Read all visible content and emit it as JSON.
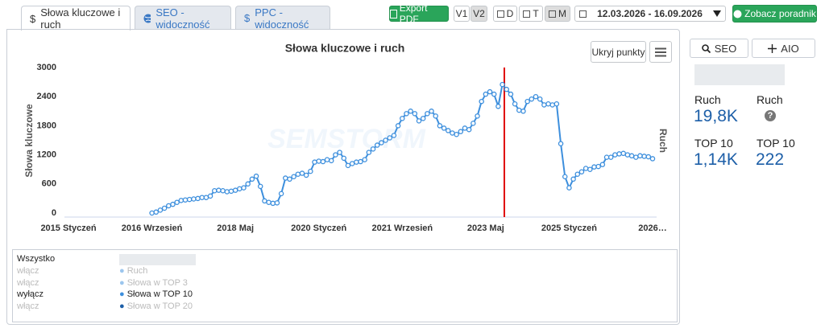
{
  "tabs": [
    {
      "icon": "$",
      "label": "Słowa kluczowe i ruch"
    },
    {
      "label": "SEO - widoczność"
    },
    {
      "icon": "$",
      "label": "PPC - widoczność"
    }
  ],
  "toolbar": {
    "export": "Export PDF",
    "versions": [
      "V1",
      "V2"
    ],
    "periods": [
      "D",
      "T",
      "M"
    ],
    "date_range": "12.03.2026 - 16.09.2026",
    "guide": "Zobacz poradnik"
  },
  "chart_controls": {
    "hide_points": "Ukryj punkty"
  },
  "side_panel": {
    "buttons": [
      "SEO",
      "AIO"
    ],
    "metrics": [
      {
        "label": "Ruch",
        "value": "19,8K"
      },
      {
        "label": "Ruch",
        "value": "?"
      },
      {
        "label": "TOP 10",
        "value": "1,14K"
      },
      {
        "label": "TOP 10",
        "value": "222"
      }
    ]
  },
  "legend_panel": {
    "all": "Wszystko",
    "toggles": [
      "włącz",
      "włącz",
      "wyłącz",
      "włącz"
    ],
    "items": [
      "Ruch",
      "Słowa w TOP 3",
      "Słowa w TOP 10",
      "Słowa w TOP 20"
    ]
  },
  "chart_data": {
    "type": "line",
    "title": "Słowa kluczowe i ruch",
    "y_label": "Słowa kluczowe",
    "y2_label": "Ruch",
    "watermark": "SEMSTORM",
    "color": "#3d8fdd",
    "ylim": [
      0,
      3000
    ],
    "yticks": [
      0,
      600,
      1200,
      1800,
      2400,
      3000
    ],
    "grid": false,
    "categories": [
      "2015 Styczeń",
      null,
      null,
      null,
      null,
      null,
      null,
      null,
      null,
      null,
      null,
      null,
      null,
      null,
      null,
      null,
      null,
      null,
      null,
      null,
      "2016 Wrzesień",
      null,
      null,
      null,
      null,
      null,
      null,
      null,
      null,
      null,
      null,
      null,
      null,
      null,
      null,
      null,
      null,
      null,
      null,
      null,
      "2018 Maj",
      null,
      null,
      null,
      null,
      null,
      null,
      null,
      null,
      null,
      null,
      null,
      null,
      null,
      null,
      null,
      null,
      null,
      null,
      null,
      "2020 Styczeń",
      null,
      null,
      null,
      null,
      null,
      null,
      null,
      null,
      null,
      null,
      null,
      null,
      null,
      null,
      null,
      null,
      null,
      null,
      null,
      "2021 Wrzesień",
      null,
      null,
      null,
      null,
      null,
      null,
      null,
      null,
      null,
      null,
      null,
      null,
      null,
      null,
      null,
      null,
      null,
      null,
      null,
      "2023 Maj",
      null,
      null,
      null,
      null,
      null,
      null,
      null,
      null,
      null,
      null,
      null,
      null,
      null,
      null,
      null,
      null,
      null,
      null,
      null,
      "2025 Styczeń",
      null,
      null,
      null,
      null,
      null,
      null,
      null,
      null,
      null,
      null,
      null,
      null,
      null,
      null,
      null,
      null,
      null,
      null,
      null,
      "2026…"
    ],
    "values": [
      null,
      null,
      null,
      null,
      null,
      null,
      null,
      null,
      null,
      null,
      null,
      null,
      null,
      null,
      null,
      null,
      null,
      null,
      null,
      null,
      0,
      20,
      60,
      100,
      150,
      180,
      220,
      260,
      270,
      280,
      290,
      300,
      320,
      320,
      350,
      460,
      470,
      460,
      440,
      450,
      470,
      500,
      520,
      600,
      700,
      760,
      550,
      250,
      220,
      200,
      210,
      400,
      720,
      700,
      750,
      800,
      820,
      780,
      860,
      1050,
      1070,
      1060,
      1100,
      1080,
      1200,
      1250,
      1130,
      980,
      1020,
      1050,
      1060,
      1100,
      1250,
      1320,
      1400,
      1450,
      1500,
      1550,
      1600,
      1800,
      1950,
      2050,
      2100,
      2050,
      1900,
      1950,
      2050,
      2100,
      2000,
      1800,
      1750,
      1700,
      1650,
      1620,
      1680,
      1750,
      1720,
      1850,
      2000,
      2300,
      2450,
      2500,
      2450,
      2200,
      2650,
      2550,
      2450,
      2250,
      2120,
      2100,
      2300,
      2350,
      2400,
      2350,
      2230,
      2250,
      2230,
      2250,
      1430,
      750,
      520,
      700,
      800,
      850,
      920,
      900,
      950,
      960,
      1000,
      1150,
      1150,
      1200,
      1220,
      1230,
      1200,
      1180,
      1150,
      1180,
      1170,
      1160,
      1120
    ]
  }
}
